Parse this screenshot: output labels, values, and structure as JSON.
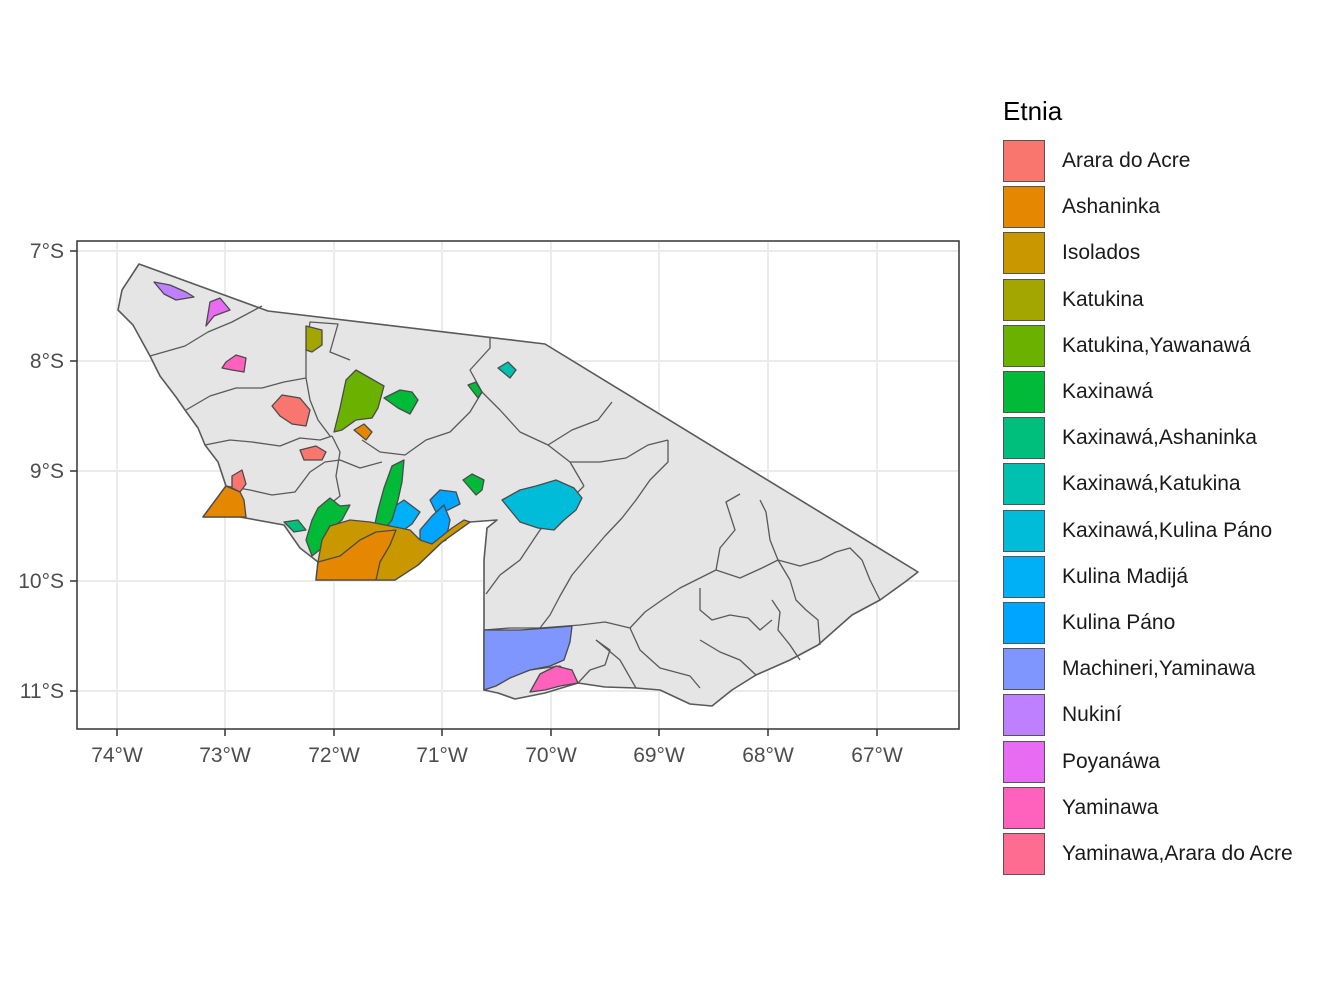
{
  "legend": {
    "title": "Etnia",
    "items": [
      {
        "label": "Arara do Acre",
        "color": "#F8766D"
      },
      {
        "label": "Ashaninka",
        "color": "#E58700"
      },
      {
        "label": "Isolados",
        "color": "#C99800"
      },
      {
        "label": "Katukina",
        "color": "#A3A500"
      },
      {
        "label": "Katukina,Yawanawá",
        "color": "#6BB100"
      },
      {
        "label": "Kaxinawá",
        "color": "#00BA38"
      },
      {
        "label": "Kaxinawá,Ashaninka",
        "color": "#00BF7D"
      },
      {
        "label": "Kaxinawá,Katukina",
        "color": "#00C0AF"
      },
      {
        "label": "Kaxinawá,Kulina Páno",
        "color": "#00BCD8"
      },
      {
        "label": "Kulina Madijá",
        "color": "#00B0F6"
      },
      {
        "label": "Kulina Páno",
        "color": "#00A5FF"
      },
      {
        "label": "Machineri,Yaminawa",
        "color": "#7F96FF"
      },
      {
        "label": "Nukiní",
        "color": "#BF80FF"
      },
      {
        "label": "Poyanáwa",
        "color": "#E76BF3"
      },
      {
        "label": "Yaminawa",
        "color": "#FF62BC"
      },
      {
        "label": "Yaminawa,Arara do Acre",
        "color": "#FF6C91"
      }
    ]
  },
  "axes": {
    "x_ticks": [
      "74°W",
      "73°W",
      "72°W",
      "71°W",
      "70°W",
      "69°W",
      "68°W",
      "67°W"
    ],
    "y_ticks": [
      "7°S",
      "8°S",
      "9°S",
      "10°S",
      "11°S"
    ]
  },
  "colors": {
    "land": "#E5E5E5",
    "border": "#595959",
    "grid": "#EBEBEB",
    "panel_border": "#333333"
  }
}
